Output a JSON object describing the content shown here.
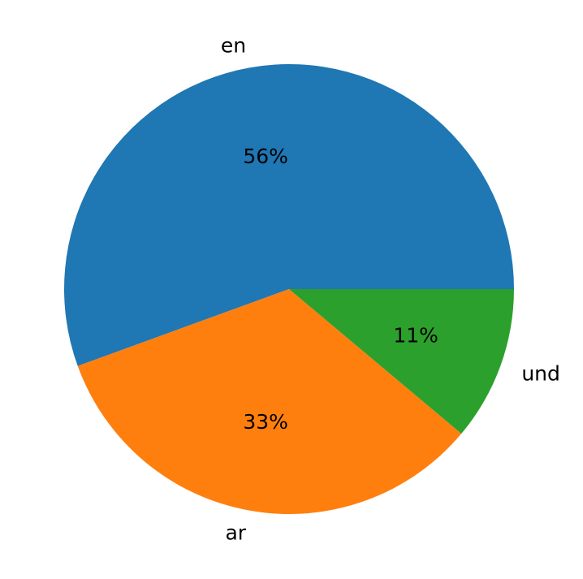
{
  "chart_data": {
    "type": "pie",
    "categories": [
      "en",
      "ar",
      "und"
    ],
    "values": [
      5,
      3,
      1
    ],
    "percent_labels": [
      "56%",
      "33%",
      "11%"
    ],
    "colors": [
      "#1f77b4",
      "#ff7f0e",
      "#2ca02c"
    ],
    "start_angle": 0,
    "direction": "counterclockwise",
    "title": "",
    "legend": "none"
  }
}
